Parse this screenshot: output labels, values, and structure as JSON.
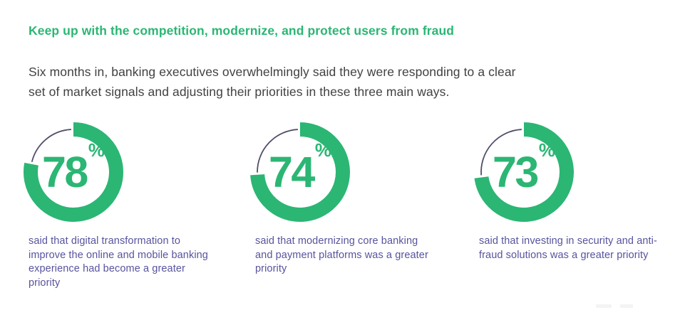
{
  "colors": {
    "green": "#2bb674",
    "purple": "#57539e",
    "arc_remainder": "#524e6b",
    "body_text": "#414141",
    "background": "#ffffff"
  },
  "header": {
    "heading": "Keep up with the competition, modernize, and protect users from fraud"
  },
  "intro": {
    "line1": "Six months in, banking executives overwhelmingly said they were responding to a clear",
    "line2": "set of market signals and adjusting their priorities in these three main ways."
  },
  "percent_sign": "%",
  "stats": [
    {
      "percent": 78,
      "label": "said that digital transformation to improve the online and mobile banking experience had become a greater priority"
    },
    {
      "percent": 74,
      "label": "said that modernizing core banking and payment platforms was a greater priority"
    },
    {
      "percent": 73,
      "label": "said that investing in security and anti-fraud solutions was a greater priority"
    }
  ],
  "chart_data": {
    "type": "pie",
    "subtype": "donut",
    "title": "Keep up with the competition, modernize, and protect users from fraud",
    "subtitle": "Six months in, banking executives overwhelmingly said they were responding to a clear set of market signals and adjusting their priorities in these three main ways.",
    "unit": "%",
    "series": [
      {
        "name": "said that digital transformation to improve the online and mobile banking experience had become a greater priority",
        "value": 78
      },
      {
        "name": "said that modernizing core banking and payment platforms was a greater priority",
        "value": 74
      },
      {
        "name": "said that investing in security and anti-fraud solutions was a greater priority",
        "value": 73
      }
    ],
    "layout": {
      "start_angle_deg": 0,
      "direction": "clockwise",
      "value_arc_color": "#2bb674",
      "remainder_arc_color": "#524e6b",
      "value_label_position": "center"
    }
  }
}
